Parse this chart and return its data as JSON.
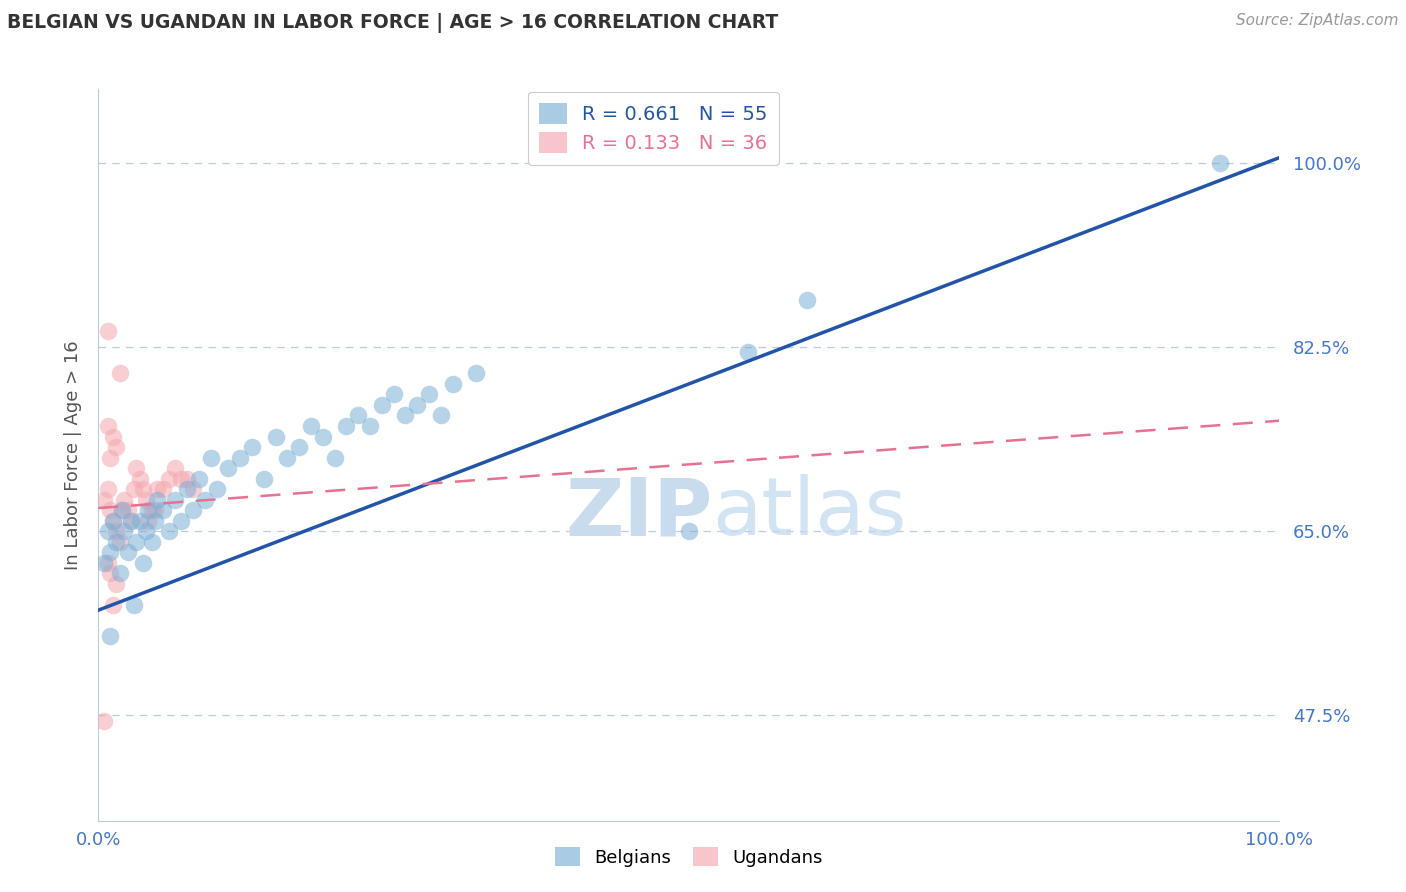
{
  "title": "BELGIAN VS UGANDAN IN LABOR FORCE | AGE > 16 CORRELATION CHART",
  "source": "Source: ZipAtlas.com",
  "ylabel": "In Labor Force | Age > 16",
  "yticks": [
    0.475,
    0.65,
    0.825,
    1.0
  ],
  "ytick_labels": [
    "47.5%",
    "65.0%",
    "82.5%",
    "100.0%"
  ],
  "xlim": [
    0.0,
    1.0
  ],
  "ylim": [
    0.375,
    1.07
  ],
  "belgian_R": 0.661,
  "belgian_N": 55,
  "ugandan_R": 0.133,
  "ugandan_N": 36,
  "blue_color": "#7BAFD4",
  "pink_color": "#F4A7B0",
  "blue_line_color": "#2255AA",
  "pink_line_color": "#E87090",
  "axis_label_color": "#4477CC",
  "watermark_color": "#DCE9F5",
  "background_color": "#FFFFFF",
  "belgian_x": [
    0.005,
    0.008,
    0.01,
    0.012,
    0.015,
    0.018,
    0.02,
    0.022,
    0.025,
    0.028,
    0.03,
    0.032,
    0.035,
    0.038,
    0.04,
    0.042,
    0.045,
    0.048,
    0.05,
    0.055,
    0.06,
    0.065,
    0.07,
    0.075,
    0.08,
    0.085,
    0.09,
    0.095,
    0.1,
    0.11,
    0.12,
    0.13,
    0.14,
    0.15,
    0.16,
    0.17,
    0.18,
    0.19,
    0.2,
    0.21,
    0.22,
    0.23,
    0.24,
    0.25,
    0.26,
    0.27,
    0.28,
    0.29,
    0.3,
    0.32,
    0.5,
    0.55,
    0.6,
    0.95,
    0.01
  ],
  "belgian_y": [
    0.62,
    0.65,
    0.63,
    0.66,
    0.64,
    0.61,
    0.67,
    0.65,
    0.63,
    0.66,
    0.58,
    0.64,
    0.66,
    0.62,
    0.65,
    0.67,
    0.64,
    0.66,
    0.68,
    0.67,
    0.65,
    0.68,
    0.66,
    0.69,
    0.67,
    0.7,
    0.68,
    0.72,
    0.69,
    0.71,
    0.72,
    0.73,
    0.7,
    0.74,
    0.72,
    0.73,
    0.75,
    0.74,
    0.72,
    0.75,
    0.76,
    0.75,
    0.77,
    0.78,
    0.76,
    0.77,
    0.78,
    0.76,
    0.79,
    0.8,
    0.65,
    0.82,
    0.87,
    1.0,
    0.55
  ],
  "ugandan_x": [
    0.005,
    0.008,
    0.01,
    0.012,
    0.015,
    0.018,
    0.02,
    0.022,
    0.025,
    0.028,
    0.03,
    0.032,
    0.035,
    0.038,
    0.04,
    0.042,
    0.045,
    0.048,
    0.05,
    0.055,
    0.06,
    0.065,
    0.07,
    0.075,
    0.08,
    0.008,
    0.01,
    0.012,
    0.015,
    0.018,
    0.005,
    0.008,
    0.01,
    0.012,
    0.015,
    0.008
  ],
  "ugandan_y": [
    0.68,
    0.69,
    0.67,
    0.66,
    0.65,
    0.64,
    0.67,
    0.68,
    0.67,
    0.66,
    0.69,
    0.71,
    0.7,
    0.69,
    0.68,
    0.66,
    0.67,
    0.67,
    0.69,
    0.69,
    0.7,
    0.71,
    0.7,
    0.7,
    0.69,
    0.84,
    0.72,
    0.74,
    0.73,
    0.8,
    0.47,
    0.62,
    0.61,
    0.58,
    0.6,
    0.75
  ],
  "ugandan_line_x0": 0.0,
  "ugandan_line_y0": 0.672,
  "ugandan_line_x1": 1.0,
  "ugandan_line_y1": 0.755,
  "belgian_line_x0": 0.0,
  "belgian_line_y0": 0.575,
  "belgian_line_x1": 1.0,
  "belgian_line_y1": 1.005
}
